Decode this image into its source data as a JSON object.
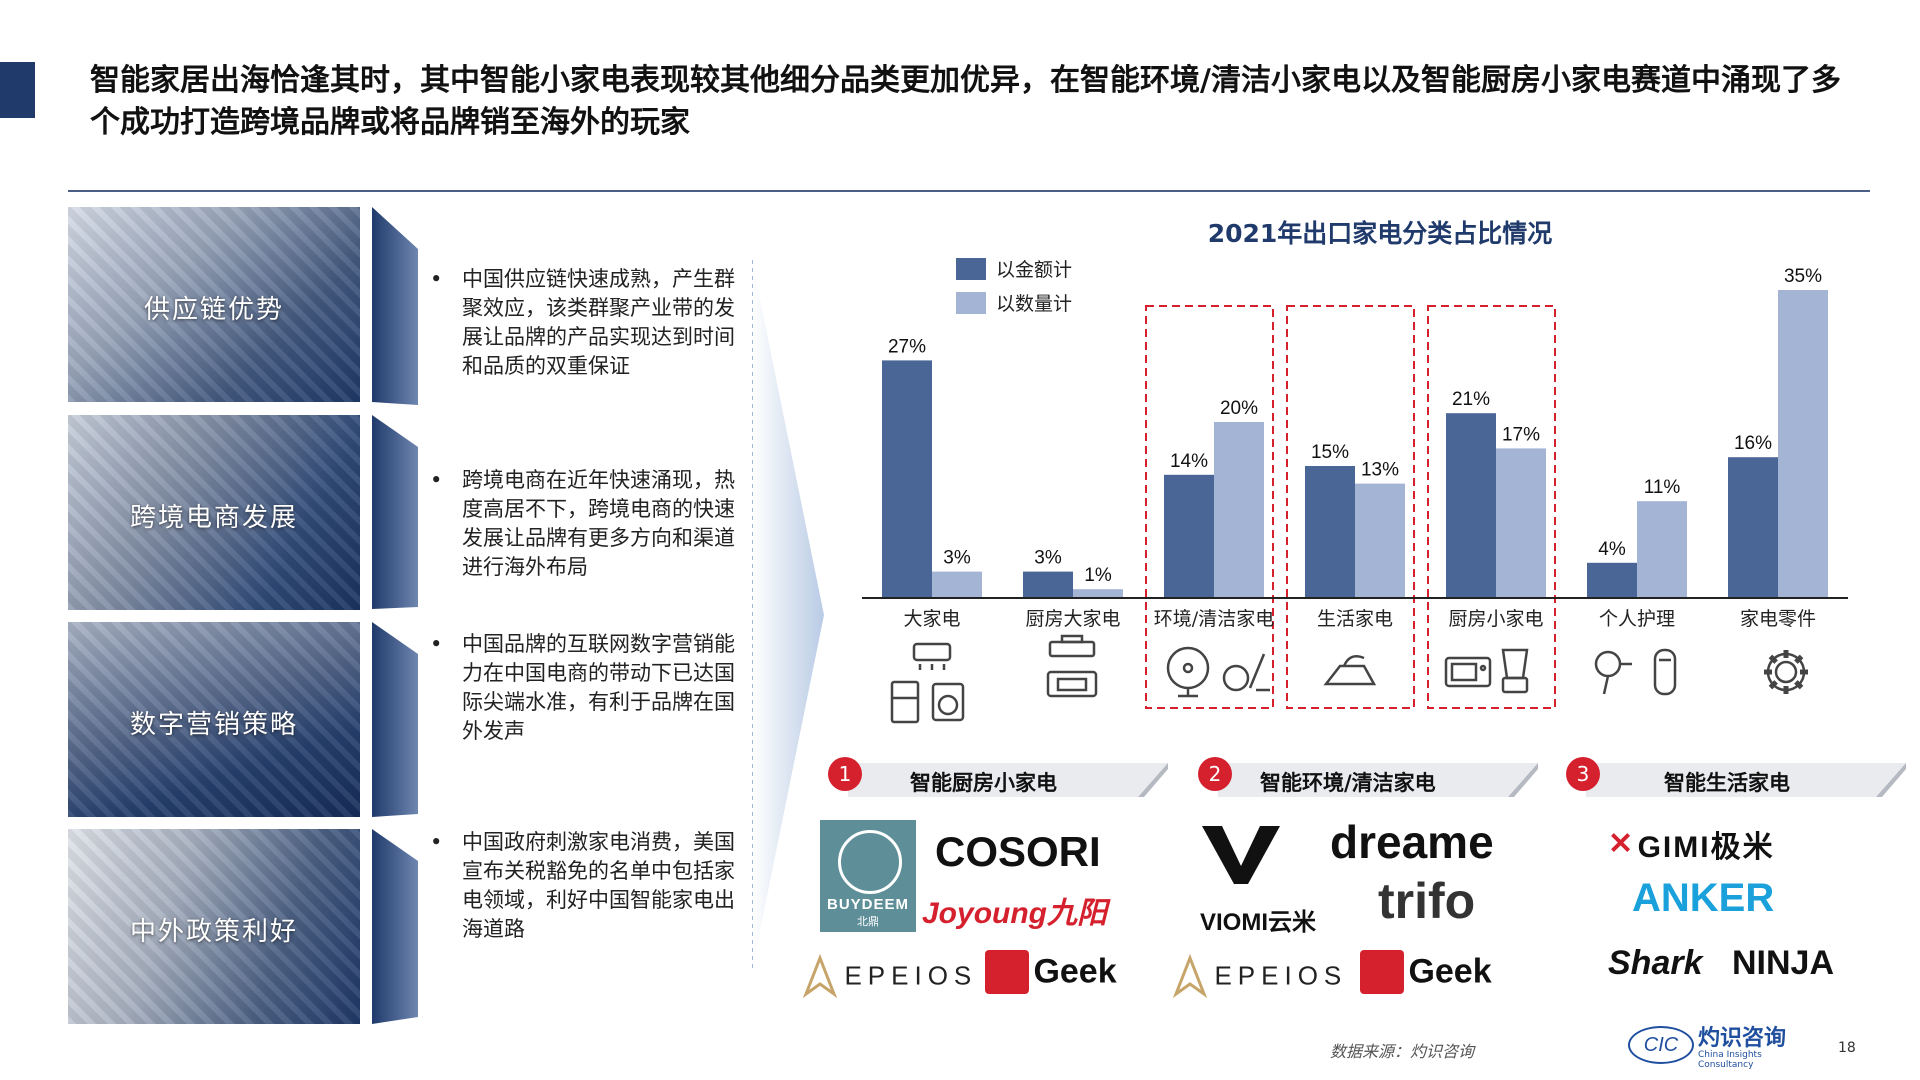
{
  "title": "智能家居出海恰逢其时，其中智能小家电表现较其他细分品类更加优异，在智能环境/清洁小家电以及智能厨房小家电赛道中涌现了多个成功打造跨境品牌或将品牌销至海外的玩家",
  "panels": [
    "供应链优势",
    "跨境电商发展",
    "数字营销策略",
    "中外政策利好"
  ],
  "bullets": [
    "中国供应链快速成熟，产生群聚效应，该类群聚产业带的发展让品牌的产品实现达到时间和品质的双重保证",
    "跨境电商在近年快速涌现，热度高居不下，跨境电商的快速发展让品牌有更多方向和渠道进行海外布局",
    "中国品牌的互联网数字营销能力在中国电商的带动下已达国际尖端水准，有利于品牌在国外发声",
    "中国政府刺激家电消费，美国宣布关税豁免的名单中包括家电领域，利好中国智能家电出海道路"
  ],
  "bullet_symbol": "•",
  "chart_data": {
    "type": "bar",
    "title": "2021年出口家电分类占比情况",
    "categories": [
      "大家电",
      "厨房大家电",
      "环境/清洁家电",
      "生活家电",
      "厨房小家电",
      "个人护理",
      "家电零件"
    ],
    "series": [
      {
        "name": "以金额计",
        "values": [
          27,
          3,
          14,
          15,
          21,
          4,
          16
        ],
        "labels": [
          "27%",
          "3%",
          "14%",
          "15%",
          "21%",
          "4%",
          "16%"
        ],
        "color": "#4a6697"
      },
      {
        "name": "以数量计",
        "values": [
          3,
          1,
          20,
          13,
          17,
          11,
          35
        ],
        "labels": [
          "3%",
          "1%",
          "20%",
          "13%",
          "17%",
          "11%",
          "35%"
        ],
        "color": "#a3b4d4"
      }
    ],
    "ylim": [
      0,
      35
    ],
    "highlighted_categories": [
      "环境/清洁家电",
      "生活家电",
      "厨房小家电"
    ],
    "highlight_color": "#d5212e",
    "legend_position": "top-left",
    "grid": false
  },
  "category_icons": [
    [
      "air-conditioner-icon",
      "fridge-icon",
      "washer-icon"
    ],
    [
      "range-hood-icon",
      "oven-icon"
    ],
    [
      "fan-icon",
      "vacuum-icon"
    ],
    [
      "iron-icon"
    ],
    [
      "microwave-icon",
      "blender-icon"
    ],
    [
      "hair-dryer-icon",
      "shaver-icon"
    ],
    [
      "gear-icon"
    ]
  ],
  "sections": [
    {
      "num": "1",
      "title": "智能厨房小家电"
    },
    {
      "num": "2",
      "title": "智能环境/清洁家电"
    },
    {
      "num": "3",
      "title": "智能生活家电"
    }
  ],
  "brands": {
    "buydeem": "BUYDEEM",
    "buydeem_sub": "北鼎",
    "cosori": "COSORI",
    "joyoung": "Joyoung九阳",
    "epeios": "EPEIOS",
    "geek": "Geek",
    "viomi": "VIOMI云米",
    "dreame": "dreame",
    "trifo": "trifo",
    "gimi": "GIMI极米",
    "anker": "ANKER",
    "shark": "Shark",
    "ninja": "NINJA"
  },
  "footer": {
    "source": "数据来源：灼识咨询",
    "cic_abbr": "CIC",
    "cic_cn": "灼识咨询",
    "cic_en": "China Insights Consultancy",
    "page": "18"
  },
  "colors": {
    "navy": "#1f3a6b",
    "red": "#d5212e",
    "series_dark": "#4a6697",
    "series_light": "#a3b4d4"
  }
}
